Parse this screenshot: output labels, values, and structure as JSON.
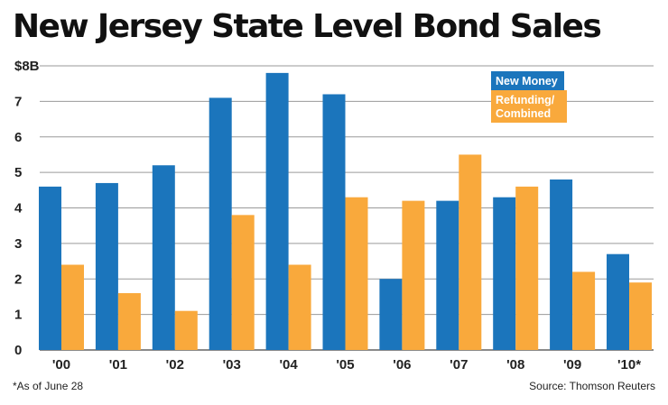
{
  "chart_data": {
    "type": "bar",
    "title": "New Jersey State Level Bond Sales",
    "ylabel": "",
    "xlabel": "",
    "ylim": [
      0,
      8
    ],
    "y_ticks": [
      0,
      1,
      2,
      3,
      4,
      5,
      6,
      7,
      8
    ],
    "y_tick_labels": [
      "0",
      "1",
      "2",
      "3",
      "4",
      "5",
      "6",
      "7",
      "$8B"
    ],
    "categories": [
      "'00",
      "'01",
      "'02",
      "'03",
      "'04",
      "'05",
      "'06",
      "'07",
      "'08",
      "'09",
      "'10*"
    ],
    "series": [
      {
        "name": "New Money",
        "legend_lines": [
          "New Money"
        ],
        "color": "#1b75bc",
        "values": [
          4.6,
          4.7,
          5.2,
          7.1,
          7.8,
          7.2,
          2.0,
          4.2,
          4.3,
          4.8,
          2.7
        ]
      },
      {
        "name": "Refunding/ Combined",
        "legend_lines": [
          "Refunding/",
          "Combined"
        ],
        "color": "#f9a93c",
        "values": [
          2.4,
          1.6,
          1.1,
          3.8,
          2.4,
          4.3,
          4.2,
          5.5,
          4.6,
          2.2,
          1.9
        ]
      }
    ],
    "grid": true,
    "legend_position": "top-right"
  },
  "footnote": "*As of June 28",
  "source": "Source: Thomson Reuters"
}
